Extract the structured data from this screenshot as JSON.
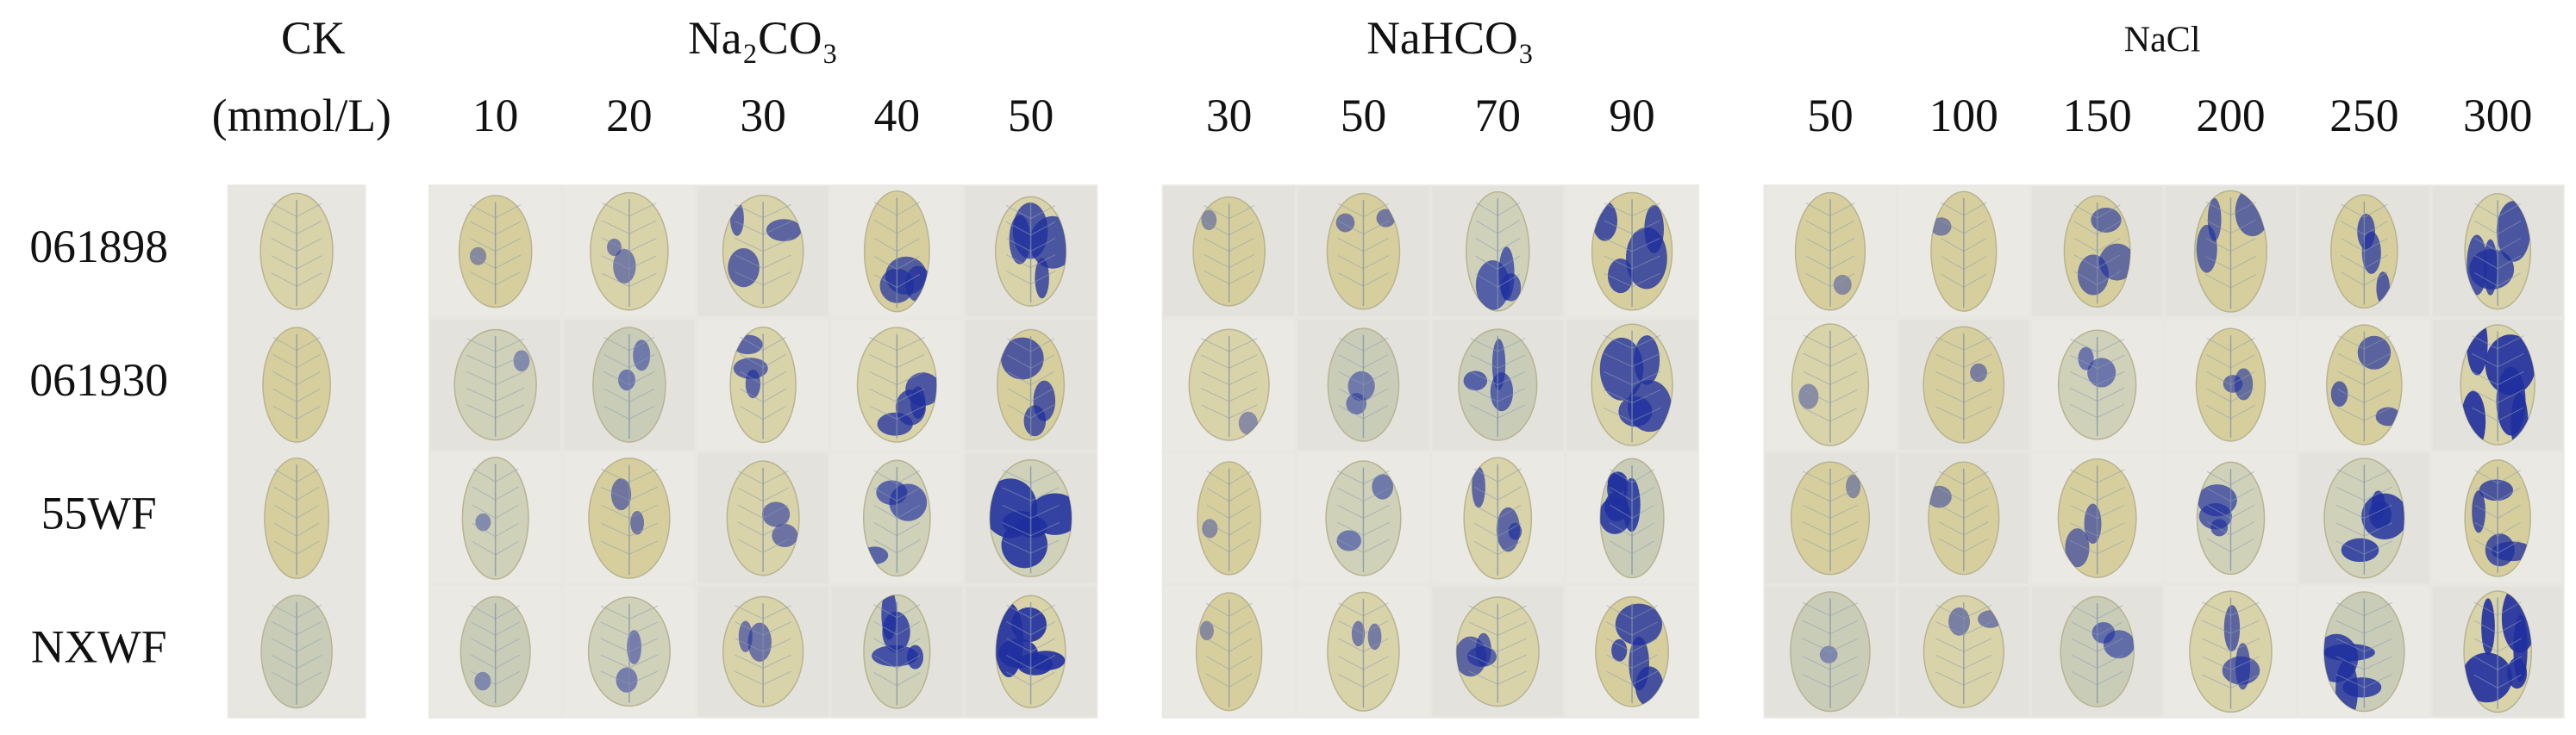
{
  "header": {
    "ck": "CK",
    "unit": "(mmol/L)"
  },
  "groups": [
    {
      "name": "Na₂CO₃",
      "concentrations": [
        10,
        20,
        30,
        40,
        50
      ]
    },
    {
      "name": "NaHCO₃",
      "concentrations": [
        30,
        50,
        70,
        90
      ]
    },
    {
      "name": "NaCl",
      "concentrations": [
        50,
        100,
        150,
        200,
        250,
        300
      ]
    }
  ],
  "rows": [
    "061898",
    "061930",
    "55WF",
    "NXWF"
  ]
}
